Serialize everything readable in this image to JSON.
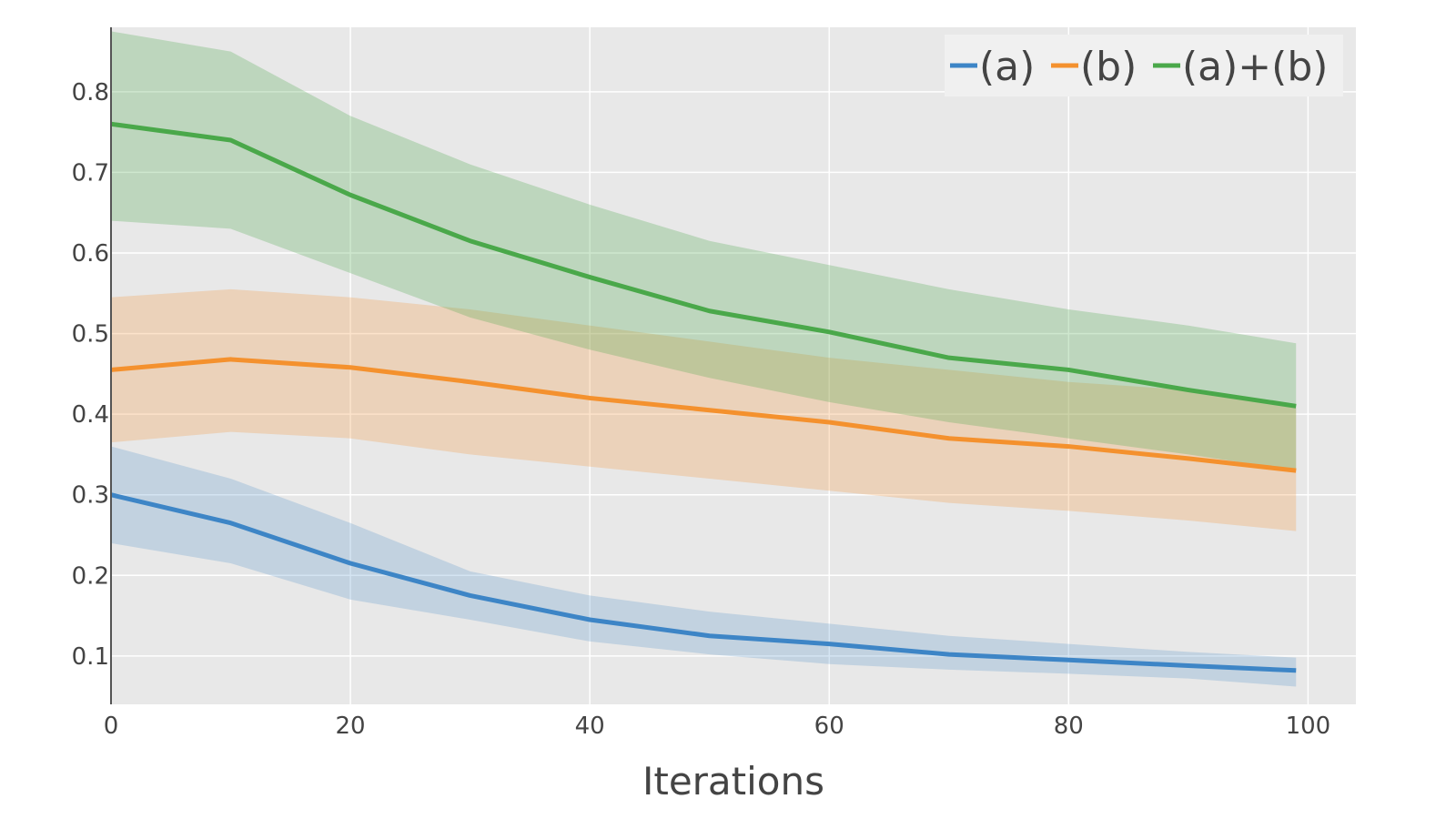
{
  "chart_data": {
    "type": "line",
    "title": "",
    "xlabel": "Iterations",
    "ylabel": "",
    "xlim": [
      0,
      104
    ],
    "ylim": [
      0.04,
      0.88
    ],
    "xticks": [
      0,
      20,
      40,
      60,
      80,
      100
    ],
    "xtick_labels": [
      "0",
      "20",
      "40",
      "60",
      "80",
      "100"
    ],
    "yticks": [
      0.1,
      0.2,
      0.3,
      0.4,
      0.5,
      0.6,
      0.7,
      0.8
    ],
    "ytick_labels": [
      "0.1",
      "0.2",
      "0.3",
      "0.4",
      "0.5",
      "0.6",
      "0.7",
      "0.8"
    ],
    "grid": true,
    "legend_position": "top-right",
    "x": [
      0,
      10,
      20,
      30,
      40,
      50,
      60,
      70,
      80,
      90,
      99
    ],
    "series": [
      {
        "name": "(a)",
        "color": "#3d85c6",
        "band_color": "rgba(61,133,198,0.22)",
        "mean": [
          0.3,
          0.265,
          0.215,
          0.175,
          0.145,
          0.125,
          0.115,
          0.102,
          0.095,
          0.088,
          0.082
        ],
        "upper": [
          0.36,
          0.32,
          0.265,
          0.205,
          0.175,
          0.155,
          0.14,
          0.125,
          0.115,
          0.105,
          0.098
        ],
        "lower": [
          0.24,
          0.215,
          0.17,
          0.145,
          0.118,
          0.102,
          0.09,
          0.083,
          0.078,
          0.072,
          0.062
        ]
      },
      {
        "name": "(b)",
        "color": "#f4912e",
        "band_color": "rgba(244,145,46,0.25)",
        "mean": [
          0.455,
          0.468,
          0.458,
          0.44,
          0.42,
          0.405,
          0.39,
          0.37,
          0.36,
          0.345,
          0.33
        ],
        "upper": [
          0.545,
          0.555,
          0.545,
          0.53,
          0.51,
          0.49,
          0.47,
          0.455,
          0.44,
          0.43,
          0.408
        ],
        "lower": [
          0.365,
          0.378,
          0.37,
          0.35,
          0.335,
          0.32,
          0.305,
          0.29,
          0.28,
          0.268,
          0.255
        ]
      },
      {
        "name": "(a)+(b)",
        "color": "#4aa84a",
        "band_color": "rgba(74,168,74,0.27)",
        "mean": [
          0.76,
          0.74,
          0.672,
          0.615,
          0.57,
          0.528,
          0.502,
          0.47,
          0.455,
          0.43,
          0.41
        ],
        "upper": [
          0.875,
          0.85,
          0.77,
          0.71,
          0.66,
          0.615,
          0.585,
          0.555,
          0.53,
          0.51,
          0.488
        ],
        "lower": [
          0.64,
          0.63,
          0.575,
          0.52,
          0.48,
          0.445,
          0.415,
          0.39,
          0.37,
          0.35,
          0.33
        ]
      }
    ]
  }
}
